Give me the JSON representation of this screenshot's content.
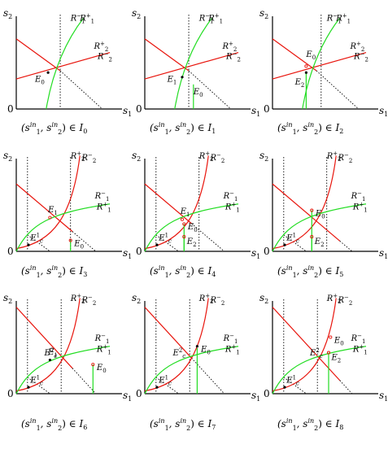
{
  "axes": {
    "y_label": "s",
    "y_sub": "2",
    "x_label": "s",
    "x_sub": "1",
    "origin": "0"
  },
  "caption": {
    "lhs": "(s",
    "sup": "in",
    "sub1": "1",
    "sub2": "2",
    "mid": ", s",
    "rhs": ") ∈ ",
    "set": "I"
  },
  "panels": [
    {
      "index": "0",
      "labels": {
        "r1m": "R",
        "r1p": "R",
        "r2p": "R",
        "r2m": "R"
      },
      "points": [
        {
          "name": "E",
          "sub": "0"
        }
      ]
    },
    {
      "index": "1",
      "points": [
        {
          "name": "E",
          "sub": "1"
        },
        {
          "name": "E",
          "sub": "0"
        }
      ]
    },
    {
      "index": "2",
      "points": [
        {
          "name": "E",
          "sub": "0"
        },
        {
          "name": "E",
          "sub": "2"
        }
      ]
    },
    {
      "index": "3",
      "points": [
        {
          "name": "E",
          "sub": "1"
        },
        {
          "name": "E",
          "sub": "0"
        },
        {
          "name": "E",
          "sub": "c",
          "sup": "1"
        }
      ]
    },
    {
      "index": "4",
      "points": [
        {
          "name": "E",
          "sub": "1"
        },
        {
          "name": "E",
          "sub": "0"
        },
        {
          "name": "E",
          "sub": "2"
        },
        {
          "name": "E",
          "sub": "c",
          "sup": "1"
        }
      ]
    },
    {
      "index": "5",
      "points": [
        {
          "name": "E",
          "sub": "0"
        },
        {
          "name": "E",
          "sub": "2"
        },
        {
          "name": "E",
          "sub": "c",
          "sup": "1"
        }
      ]
    },
    {
      "index": "6",
      "points": [
        {
          "name": "E",
          "sub": "1"
        },
        {
          "name": "E",
          "sub": "0"
        },
        {
          "name": "E",
          "sub": "c",
          "sup": "1"
        },
        {
          "name": "E",
          "sub": "c",
          "sup": "2"
        }
      ]
    },
    {
      "index": "7",
      "points": [
        {
          "name": "E",
          "sub": "0"
        },
        {
          "name": "E",
          "sub": "c",
          "sup": "1"
        },
        {
          "name": "E",
          "sub": "c",
          "sup": "2"
        }
      ]
    },
    {
      "index": "8",
      "points": [
        {
          "name": "E",
          "sub": "0"
        },
        {
          "name": "E",
          "sub": "2"
        },
        {
          "name": "E",
          "sub": "c",
          "sup": "1"
        },
        {
          "name": "E",
          "sub": "c",
          "sup": "2"
        }
      ]
    }
  ],
  "curve_labels": {
    "R": "R",
    "one": "1",
    "two": "2",
    "minus": "−",
    "plus": "+"
  },
  "colors": {
    "red": "#e8140c",
    "green": "#22dd22",
    "axis": "#000000"
  }
}
